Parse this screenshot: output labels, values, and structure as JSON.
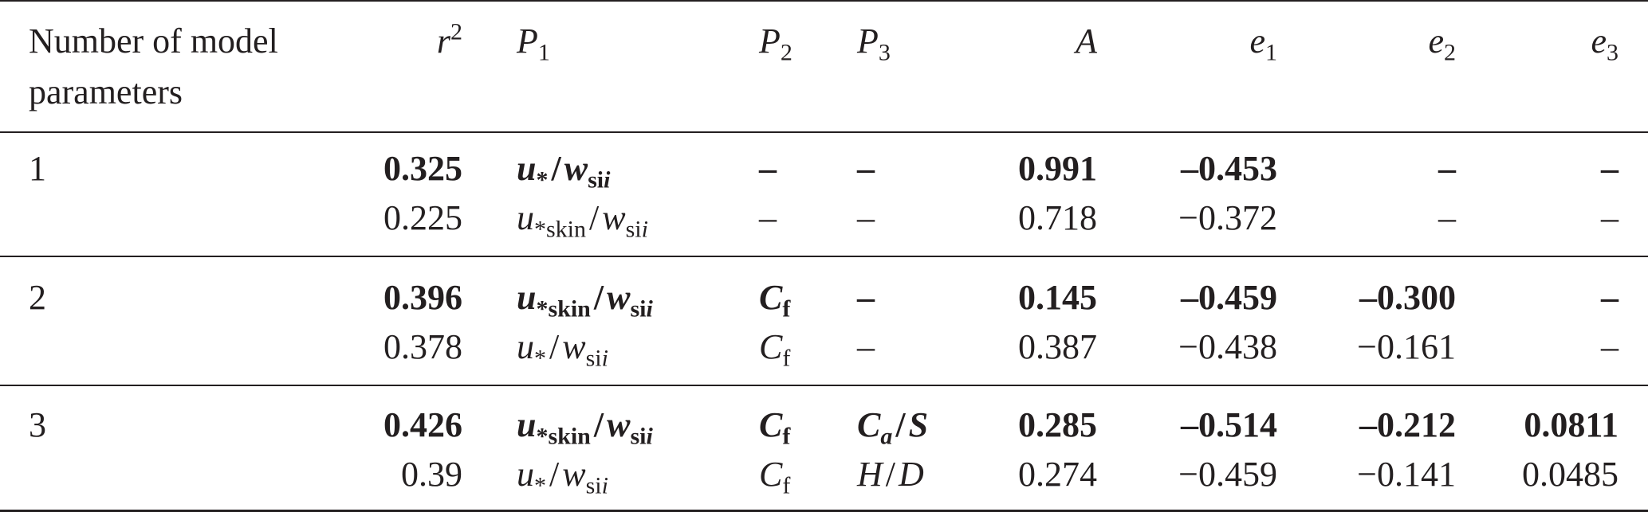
{
  "header": {
    "num_params_line1": "Number of model",
    "num_params_line2": "parameters",
    "r2_base": "r",
    "r2_sup": "2",
    "p1_base": "P",
    "p1_sub": "1",
    "p2_base": "P",
    "p2_sub": "2",
    "p3_base": "P",
    "p3_sub": "3",
    "a": "A",
    "e1_base": "e",
    "e1_sub": "1",
    "e2_base": "e",
    "e2_sub": "2",
    "e3_base": "e",
    "e3_sub": "3"
  },
  "rows": [
    {
      "group": "1",
      "bold": true,
      "r2": "0.325",
      "p1": {
        "u_sub": "*",
        "w_sub": "si"
      },
      "p2": "–",
      "p3": "–",
      "a": "0.991",
      "e1": "–0.453",
      "e2": "–",
      "e3": "–"
    },
    {
      "group": "",
      "bold": false,
      "r2": "0.225",
      "p1": {
        "u_sub": "*skin",
        "w_sub": "si"
      },
      "p2": "–",
      "p3": "–",
      "a": "0.718",
      "e1": "−0.372",
      "e2": "–",
      "e3": "–"
    },
    {
      "group": "2",
      "bold": true,
      "r2": "0.396",
      "p1": {
        "u_sub": "*skin",
        "w_sub": "si"
      },
      "p2": {
        "base": "C",
        "sub": "f"
      },
      "p3": "–",
      "a": "0.145",
      "e1": "–0.459",
      "e2": "–0.300",
      "e3": "–"
    },
    {
      "group": "",
      "bold": false,
      "r2": "0.378",
      "p1": {
        "u_sub": "*",
        "w_sub": "si"
      },
      "p2": {
        "base": "C",
        "sub": "f"
      },
      "p3": "–",
      "a": "0.387",
      "e1": "−0.438",
      "e2": "−0.161",
      "e3": "–"
    },
    {
      "group": "3",
      "bold": true,
      "r2": "0.426",
      "p1": {
        "u_sub": "*skin",
        "w_sub": "si"
      },
      "p2": {
        "base": "C",
        "sub": "f"
      },
      "p3": {
        "num_base": "C",
        "num_sub": "a",
        "den": "S"
      },
      "a": "0.285",
      "e1": "–0.514",
      "e2": "–0.212",
      "e3": "0.0811"
    },
    {
      "group": "",
      "bold": false,
      "r2": "0.39",
      "p1": {
        "u_sub": "*",
        "w_sub": "si"
      },
      "p2": {
        "base": "C",
        "sub": "f"
      },
      "p3": {
        "num_base": "H",
        "num_sub": "",
        "den": "D"
      },
      "a": "0.274",
      "e1": "−0.459",
      "e2": "−0.141",
      "e3": "0.0485"
    }
  ],
  "symbols": {
    "u": "u",
    "w": "w",
    "i": "i",
    "slash": "/"
  }
}
